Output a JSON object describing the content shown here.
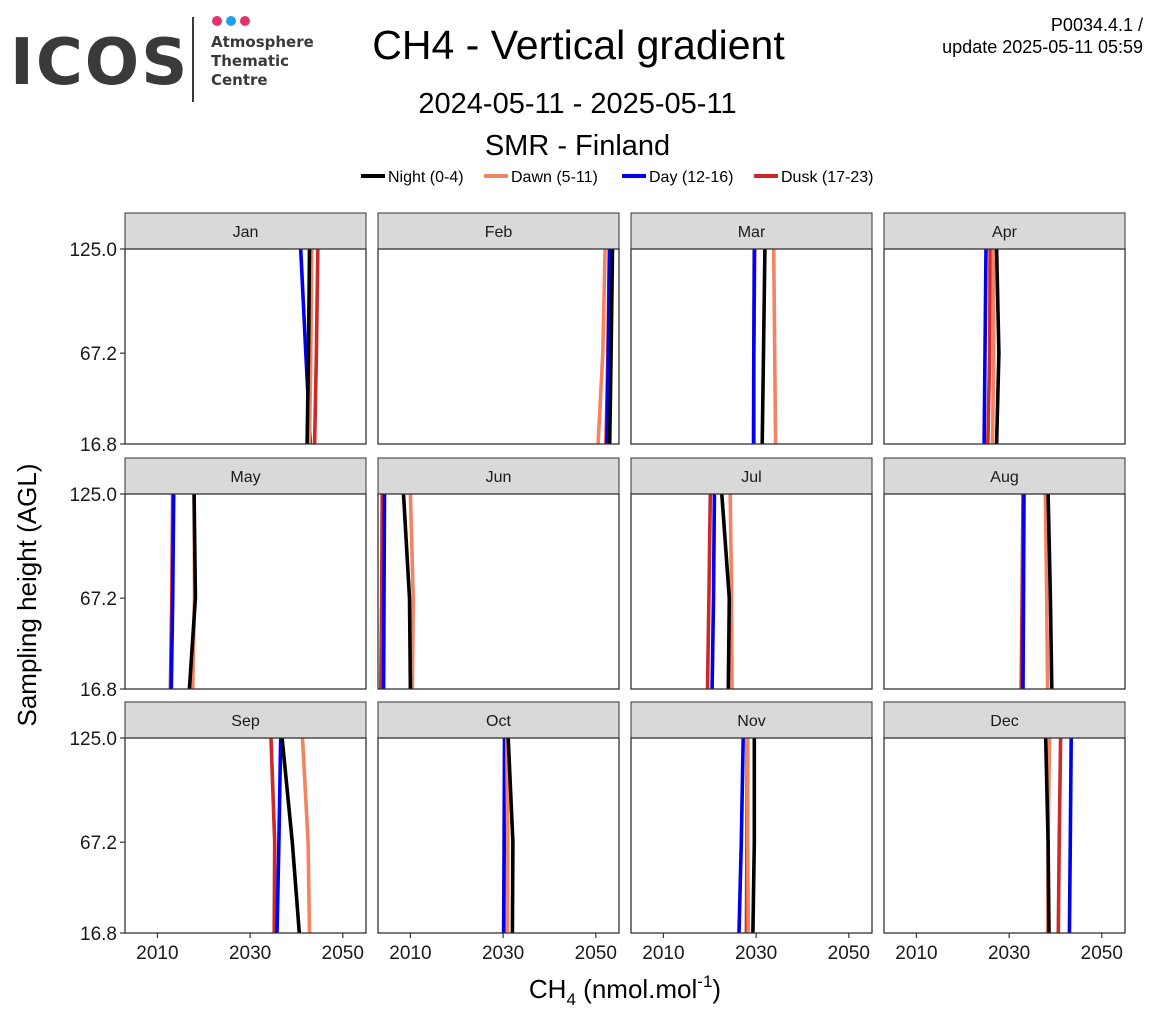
{
  "header": {
    "title": "CH4 - Vertical gradient",
    "period": "2024-05-11 - 2025-05-11",
    "station": "SMR - Finland",
    "version_line1": "P0034.4.1 /",
    "version_line2": "update  2025-05-11 05:59"
  },
  "logo": {
    "wordmark": "ICOS",
    "line1": "Atmosphere",
    "line2": "Thematic",
    "line3": "Centre",
    "dot_colors": [
      "#e8326e",
      "#1ea0e6",
      "#e8326e"
    ]
  },
  "chart_data": {
    "type": "line",
    "title": "CH4 - Vertical gradient",
    "xlabel": "CH4 (nmol.mol-1)",
    "xlabel_main": "CH",
    "xlabel_sub": "4",
    "xlabel_rest": " (nmol.mol",
    "xlabel_sup": "-1",
    "xlabel_end": ")",
    "ylabel": "Sampling height (AGL)",
    "xlim": [
      2003,
      2055
    ],
    "xticks": [
      2010,
      2030,
      2050
    ],
    "xtick_labels": [
      "2010",
      "2030",
      "2050"
    ],
    "heights": [
      16.8,
      67.2,
      125.0
    ],
    "ytick_labels": [
      "16.8",
      "67.2",
      "125.0"
    ],
    "grid": false,
    "legend_position": "top",
    "series": [
      {
        "name": "Night (0-4)",
        "color": "#000000"
      },
      {
        "name": "Dawn (5-11)",
        "color": "#f4845f"
      },
      {
        "name": "Day (12-16)",
        "color": "#0000ee"
      },
      {
        "name": "Dusk (17-23)",
        "color": "#cc2a2a"
      }
    ],
    "panels": [
      {
        "month": "Jan",
        "night": [
          2042.3,
          2042.6,
          2042.8
        ],
        "dawn": [
          2042.8,
          2043.1,
          2043.3
        ],
        "day": [
          2043.0,
          2042.0,
          2040.9
        ],
        "dusk": [
          2043.9,
          2044.3,
          2044.6
        ]
      },
      {
        "month": "Feb",
        "night": [
          2053.0,
          2053.3,
          2053.6
        ],
        "dawn": [
          2050.5,
          2051.5,
          2052.0
        ],
        "day": [
          2052.4,
          2052.7,
          2053.0
        ],
        "dusk": [
          2052.2,
          2052.6,
          2052.9
        ]
      },
      {
        "month": "Mar",
        "night": [
          2031.3,
          2031.6,
          2031.9
        ],
        "dawn": [
          2034.2,
          2034.0,
          2033.8
        ],
        "day": [
          2029.5,
          2029.5,
          2029.6
        ],
        "dusk": [
          2029.4,
          2029.5,
          2029.7
        ]
      },
      {
        "month": "Apr",
        "night": [
          2027.3,
          2027.8,
          2027.3
        ],
        "dawn": [
          2026.4,
          2026.7,
          2026.6
        ],
        "day": [
          2024.6,
          2024.8,
          2025.0
        ],
        "dusk": [
          2025.4,
          2025.8,
          2025.9
        ]
      },
      {
        "month": "May",
        "night": [
          2016.9,
          2018.2,
          2017.9
        ],
        "dawn": [
          2017.6,
          2018.0,
          2017.9
        ],
        "day": [
          2013.0,
          2013.3,
          2013.5
        ],
        "dusk": [
          2012.8,
          2013.1,
          2013.3
        ]
      },
      {
        "month": "Jun",
        "night": [
          2010.0,
          2009.8,
          2008.5
        ],
        "dawn": [
          2010.4,
          2010.6,
          2010.0
        ],
        "day": [
          2004.2,
          2004.3,
          2004.4
        ],
        "dusk": [
          2003.6,
          2003.8,
          2003.9
        ]
      },
      {
        "month": "Jul",
        "night": [
          2024.0,
          2024.2,
          2022.6
        ],
        "dawn": [
          2024.8,
          2024.7,
          2024.4
        ],
        "day": [
          2020.5,
          2020.8,
          2021.0
        ],
        "dusk": [
          2019.5,
          2019.8,
          2020.1
        ]
      },
      {
        "month": "Aug",
        "night": [
          2039.2,
          2038.9,
          2038.4
        ],
        "dawn": [
          2038.3,
          2038.1,
          2037.8
        ],
        "day": [
          2033.0,
          2033.1,
          2033.2
        ],
        "dusk": [
          2032.6,
          2032.8,
          2033.0
        ]
      },
      {
        "month": "Sep",
        "night": [
          2040.6,
          2039.1,
          2036.9
        ],
        "dawn": [
          2042.8,
          2042.5,
          2041.3
        ],
        "day": [
          2035.8,
          2036.2,
          2036.6
        ],
        "dusk": [
          2035.2,
          2035.3,
          2034.5
        ]
      },
      {
        "month": "Oct",
        "night": [
          2032.0,
          2032.1,
          2031.1
        ],
        "dawn": [
          2030.9,
          2031.0,
          2030.8
        ],
        "day": [
          2030.1,
          2030.2,
          2030.3
        ],
        "dusk": [
          2030.5,
          2030.6,
          2030.7
        ]
      },
      {
        "month": "Nov",
        "night": [
          2029.3,
          2029.6,
          2029.6
        ],
        "dawn": [
          2028.3,
          2028.2,
          2028.2
        ],
        "day": [
          2026.3,
          2026.8,
          2027.2
        ],
        "dusk": [
          2027.9,
          2028.0,
          2028.1
        ]
      },
      {
        "month": "Dec",
        "night": [
          2038.6,
          2038.4,
          2037.9
        ],
        "dawn": [
          2038.3,
          2038.4,
          2038.7
        ],
        "day": [
          2043.0,
          2043.2,
          2043.4
        ],
        "dusk": [
          2040.6,
          2040.8,
          2041.1
        ]
      }
    ]
  }
}
